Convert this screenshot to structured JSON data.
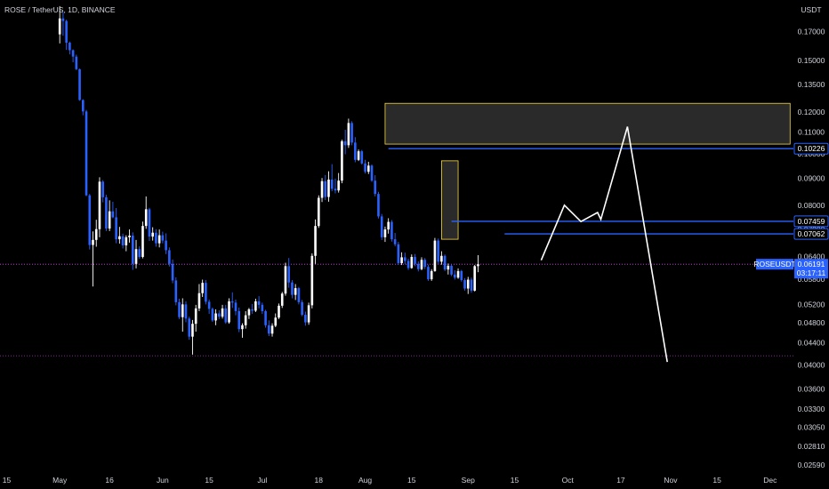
{
  "header": {
    "symbol_title": "ROSE / TetherUS, 1D, BINANCE"
  },
  "price_axis": {
    "currency": "USDT",
    "ticks": [
      "0.17000",
      "0.15000",
      "0.13500",
      "0.12000",
      "0.11000",
      "0.10000",
      "0.09000",
      "0.08000",
      "0.07200",
      "0.06400",
      "0.05800",
      "0.05200",
      "0.04800",
      "0.04400",
      "0.04000",
      "0.03600",
      "0.03300",
      "0.03050",
      "0.02810",
      "0.02590"
    ],
    "tick_values": [
      0.17,
      0.15,
      0.135,
      0.12,
      0.11,
      0.1,
      0.09,
      0.08,
      0.072,
      0.064,
      0.058,
      0.052,
      0.048,
      0.044,
      0.04,
      0.036,
      0.033,
      0.0305,
      0.0281,
      0.0259
    ]
  },
  "time_axis": {
    "labels": [
      "15",
      "May",
      "16",
      "Jun",
      "15",
      "Jul",
      "18",
      "Aug",
      "15",
      "Sep",
      "15",
      "Oct",
      "17",
      "Nov",
      "15",
      "Dec"
    ],
    "day_index": [
      -16,
      0,
      15,
      31,
      45,
      61,
      78,
      92,
      106,
      123,
      137,
      153,
      169,
      184,
      198,
      214
    ]
  },
  "price_labels": [
    {
      "name": "resistance-upper",
      "text": "0.10226",
      "value": 0.10226,
      "color": "#2962ff"
    },
    {
      "name": "resistance-mid",
      "text": "0.07459",
      "value": 0.07459,
      "color": "#2962ff"
    },
    {
      "name": "resistance-lower",
      "text": "0.07062",
      "value": 0.07062,
      "color": "#2962ff"
    }
  ],
  "current_price": {
    "symbol": "ROSEUSDT",
    "price": "0.06191",
    "countdown": "03:17:11",
    "value": 0.06191,
    "color": "#2962ff"
  },
  "chart_data": {
    "type": "candlestick",
    "title": "ROSE / TetherUS, 1D, BINANCE",
    "y_scale": "log",
    "ylim": [
      0.0252,
      0.195
    ],
    "x_axis_range_days_from_may_1": [
      -18,
      221
    ],
    "candle_up_color": "#ffffff",
    "candle_down_color": "#2962ff",
    "candles_ohlc": [
      [
        0.168,
        0.1899,
        0.1615,
        0.18
      ],
      [
        0.18,
        0.185,
        0.167,
        0.178
      ],
      [
        0.178,
        0.179,
        0.157,
        0.162
      ],
      [
        0.162,
        0.1628,
        0.154,
        0.1568
      ],
      [
        0.1568,
        0.1574,
        0.1488,
        0.1525
      ],
      [
        0.1525,
        0.1538,
        0.1438,
        0.1444
      ],
      [
        0.1444,
        0.1448,
        0.1259,
        0.1263
      ],
      [
        0.1263,
        0.1267,
        0.1182,
        0.1202
      ],
      [
        0.1202,
        0.121,
        0.0832,
        0.0835
      ],
      [
        0.0835,
        0.084,
        0.066,
        0.0673
      ],
      [
        0.0673,
        0.0714,
        0.0562,
        0.0688
      ],
      [
        0.0688,
        0.0751,
        0.0668,
        0.0721
      ],
      [
        0.0721,
        0.0903,
        0.0696,
        0.0886
      ],
      [
        0.0886,
        0.0892,
        0.081,
        0.0828
      ],
      [
        0.0828,
        0.0837,
        0.0715,
        0.0723
      ],
      [
        0.0723,
        0.0817,
        0.0715,
        0.0779
      ],
      [
        0.0779,
        0.0812,
        0.0756,
        0.0759
      ],
      [
        0.0759,
        0.079,
        0.0678,
        0.069
      ],
      [
        0.069,
        0.0728,
        0.0677,
        0.0699
      ],
      [
        0.0699,
        0.0707,
        0.0663,
        0.0672
      ],
      [
        0.0672,
        0.0702,
        0.0655,
        0.0696
      ],
      [
        0.0696,
        0.072,
        0.068,
        0.0701
      ],
      [
        0.0701,
        0.0711,
        0.0604,
        0.062
      ],
      [
        0.062,
        0.0688,
        0.0608,
        0.0661
      ],
      [
        0.0661,
        0.0669,
        0.0634,
        0.0639
      ],
      [
        0.0639,
        0.0745,
        0.0635,
        0.0731
      ],
      [
        0.0731,
        0.0831,
        0.0722,
        0.0786
      ],
      [
        0.0786,
        0.0791,
        0.0685,
        0.0698
      ],
      [
        0.0698,
        0.0727,
        0.0686,
        0.071
      ],
      [
        0.071,
        0.0721,
        0.0668,
        0.0678
      ],
      [
        0.0678,
        0.072,
        0.0666,
        0.0702
      ],
      [
        0.0702,
        0.0713,
        0.0678,
        0.0686
      ],
      [
        0.0686,
        0.0708,
        0.0647,
        0.0658
      ],
      [
        0.0658,
        0.0666,
        0.0613,
        0.062
      ],
      [
        0.062,
        0.0632,
        0.057,
        0.0577
      ],
      [
        0.0577,
        0.0585,
        0.0518,
        0.0525
      ],
      [
        0.0525,
        0.0533,
        0.0488,
        0.0492
      ],
      [
        0.0492,
        0.0534,
        0.0462,
        0.052
      ],
      [
        0.052,
        0.0527,
        0.0481,
        0.0489
      ],
      [
        0.0489,
        0.0493,
        0.0446,
        0.0452
      ],
      [
        0.0452,
        0.0486,
        0.0418,
        0.0478
      ],
      [
        0.0478,
        0.0519,
        0.0462,
        0.0511
      ],
      [
        0.0511,
        0.0568,
        0.0505,
        0.0546
      ],
      [
        0.0546,
        0.0579,
        0.0537,
        0.0571
      ],
      [
        0.0571,
        0.0578,
        0.052,
        0.0526
      ],
      [
        0.0526,
        0.0531,
        0.0499,
        0.051
      ],
      [
        0.051,
        0.0513,
        0.0482,
        0.0485
      ],
      [
        0.0485,
        0.0509,
        0.0475,
        0.05
      ],
      [
        0.05,
        0.0507,
        0.0488,
        0.0493
      ],
      [
        0.0493,
        0.0519,
        0.0489,
        0.0511
      ],
      [
        0.0511,
        0.0519,
        0.0478,
        0.0481
      ],
      [
        0.0481,
        0.0534,
        0.0478,
        0.0527
      ],
      [
        0.0527,
        0.0548,
        0.0512,
        0.0524
      ],
      [
        0.0524,
        0.0531,
        0.0496,
        0.0505
      ],
      [
        0.0505,
        0.0513,
        0.0461,
        0.0467
      ],
      [
        0.0467,
        0.0479,
        0.045,
        0.0475
      ],
      [
        0.0475,
        0.0505,
        0.0468,
        0.0496
      ],
      [
        0.0496,
        0.0512,
        0.0488,
        0.0509
      ],
      [
        0.0509,
        0.0521,
        0.0499,
        0.0506
      ],
      [
        0.0506,
        0.0533,
        0.0503,
        0.0527
      ],
      [
        0.0527,
        0.0539,
        0.0511,
        0.0519
      ],
      [
        0.0519,
        0.0524,
        0.0499,
        0.0505
      ],
      [
        0.0505,
        0.0508,
        0.047,
        0.0475
      ],
      [
        0.0475,
        0.0485,
        0.0453,
        0.0458
      ],
      [
        0.0458,
        0.0479,
        0.0452,
        0.0474
      ],
      [
        0.0474,
        0.05,
        0.0471,
        0.0491
      ],
      [
        0.0491,
        0.0522,
        0.0488,
        0.0517
      ],
      [
        0.0517,
        0.0549,
        0.0512,
        0.0545
      ],
      [
        0.0545,
        0.0623,
        0.054,
        0.0614
      ],
      [
        0.0614,
        0.0636,
        0.0559,
        0.0572
      ],
      [
        0.0572,
        0.0578,
        0.0534,
        0.0542
      ],
      [
        0.0542,
        0.0568,
        0.053,
        0.0558
      ],
      [
        0.0558,
        0.0561,
        0.052,
        0.0525
      ],
      [
        0.0525,
        0.053,
        0.0494,
        0.0497
      ],
      [
        0.0497,
        0.0504,
        0.0474,
        0.0481
      ],
      [
        0.0481,
        0.0524,
        0.0476,
        0.0518
      ],
      [
        0.0518,
        0.0649,
        0.0511,
        0.0642
      ],
      [
        0.0642,
        0.0752,
        0.062,
        0.0731
      ],
      [
        0.0731,
        0.0835,
        0.0725,
        0.0826
      ],
      [
        0.0826,
        0.09,
        0.0811,
        0.0888
      ],
      [
        0.0888,
        0.0912,
        0.0818,
        0.0829
      ],
      [
        0.0829,
        0.0927,
        0.0812,
        0.0894
      ],
      [
        0.0894,
        0.0956,
        0.085,
        0.0859
      ],
      [
        0.0859,
        0.0898,
        0.0842,
        0.0853
      ],
      [
        0.0853,
        0.092,
        0.0845,
        0.089
      ],
      [
        0.089,
        0.1063,
        0.088,
        0.1056
      ],
      [
        0.1056,
        0.111,
        0.0998,
        0.1038
      ],
      [
        0.1038,
        0.1165,
        0.1026,
        0.1143
      ],
      [
        0.1143,
        0.1152,
        0.1038,
        0.105
      ],
      [
        0.105,
        0.1075,
        0.0964,
        0.0974
      ],
      [
        0.0974,
        0.1019,
        0.0969,
        0.1011
      ],
      [
        0.1011,
        0.1017,
        0.0954,
        0.0959
      ],
      [
        0.0959,
        0.0974,
        0.0918,
        0.0925
      ],
      [
        0.0925,
        0.0966,
        0.0916,
        0.095
      ],
      [
        0.095,
        0.0955,
        0.0885,
        0.089
      ],
      [
        0.089,
        0.0911,
        0.0831,
        0.084
      ],
      [
        0.084,
        0.0848,
        0.0755,
        0.0762
      ],
      [
        0.0762,
        0.077,
        0.0688,
        0.0696
      ],
      [
        0.0696,
        0.0729,
        0.0682,
        0.072
      ],
      [
        0.072,
        0.0756,
        0.0707,
        0.0744
      ],
      [
        0.0744,
        0.075,
        0.0683,
        0.069
      ],
      [
        0.069,
        0.0709,
        0.0669,
        0.0675
      ],
      [
        0.0675,
        0.0682,
        0.0617,
        0.0622
      ],
      [
        0.0622,
        0.0652,
        0.0617,
        0.0638
      ],
      [
        0.0638,
        0.0651,
        0.0619,
        0.0628
      ],
      [
        0.0628,
        0.0634,
        0.0604,
        0.0609
      ],
      [
        0.0609,
        0.0646,
        0.0607,
        0.0639
      ],
      [
        0.0639,
        0.0647,
        0.0614,
        0.062
      ],
      [
        0.062,
        0.0627,
        0.06,
        0.0606
      ],
      [
        0.0606,
        0.0638,
        0.0603,
        0.0631
      ],
      [
        0.0631,
        0.0636,
        0.0606,
        0.0612
      ],
      [
        0.0612,
        0.0618,
        0.0576,
        0.058
      ],
      [
        0.058,
        0.0606,
        0.0576,
        0.0601
      ],
      [
        0.0601,
        0.0694,
        0.0599,
        0.0686
      ],
      [
        0.0686,
        0.0692,
        0.062,
        0.0626
      ],
      [
        0.0626,
        0.0655,
        0.0618,
        0.0642
      ],
      [
        0.0642,
        0.0646,
        0.0601,
        0.0605
      ],
      [
        0.0605,
        0.0621,
        0.0592,
        0.0615
      ],
      [
        0.0615,
        0.0618,
        0.0588,
        0.0592
      ],
      [
        0.0592,
        0.0603,
        0.0579,
        0.0584
      ],
      [
        0.0584,
        0.0608,
        0.0581,
        0.0601
      ],
      [
        0.0601,
        0.0604,
        0.0574,
        0.0578
      ],
      [
        0.0578,
        0.0583,
        0.0552,
        0.0557
      ],
      [
        0.0557,
        0.0586,
        0.0544,
        0.0579
      ],
      [
        0.0579,
        0.0584,
        0.0547,
        0.0552
      ],
      [
        0.0552,
        0.0617,
        0.055,
        0.0614
      ],
      [
        0.0614,
        0.0644,
        0.0598,
        0.06191
      ]
    ],
    "horizontal_levels": [
      {
        "price": 0.10226,
        "color": "#2962ff",
        "style": "solid"
      },
      {
        "price": 0.07459,
        "color": "#2962ff",
        "style": "solid"
      },
      {
        "price": 0.07062,
        "color": "#2962ff",
        "style": "solid"
      },
      {
        "price": 0.06191,
        "color": "#e040fb",
        "style": "dotted"
      },
      {
        "price": 0.0416,
        "color": "#9c27b0",
        "style": "dotted"
      }
    ],
    "zones": [
      {
        "from_day": 98,
        "to_day": 220,
        "top": 0.1245,
        "bottom": 0.1043,
        "fill": "#2a2a2a",
        "border": "#f5d742"
      },
      {
        "from_day": 115,
        "to_day": 120,
        "top": 0.097,
        "bottom": 0.069,
        "fill": "#2a2a2a",
        "border": "#f5d742"
      }
    ],
    "projection_path": [
      [
        145,
        0.063
      ],
      [
        152,
        0.08
      ],
      [
        157,
        0.0745
      ],
      [
        162,
        0.0775
      ],
      [
        163,
        0.0752
      ],
      [
        171,
        0.1125
      ],
      [
        183,
        0.0405
      ]
    ],
    "projection_color": "#ffffff"
  }
}
